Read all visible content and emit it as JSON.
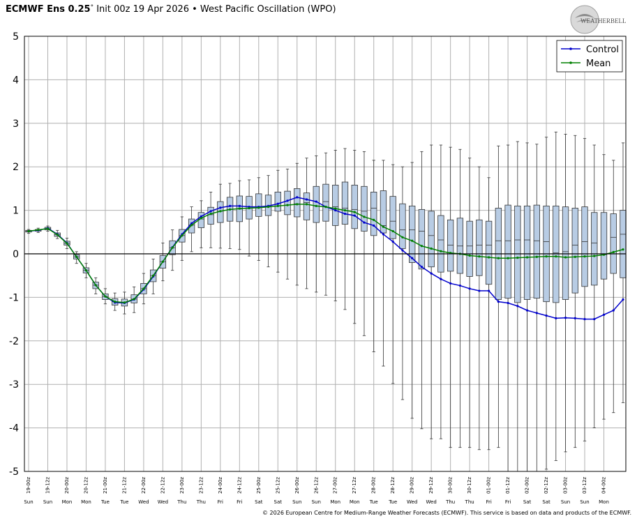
{
  "title": {
    "model": "ECMWF Ens 0.25",
    "degree": "°",
    "rest": " Init 00z 19 Apr 2026 • West Pacific Oscillation (WPO)"
  },
  "logo_text": "WeatherBELL",
  "footer": "© 2026 European Centre for Medium-Range Weather Forecasts (ECMWF). This service is based on data and products of the ECMWF.",
  "colors": {
    "control": "#0000cc",
    "mean": "#008000",
    "box_fill": "#b8cce4",
    "box_stroke": "#333333",
    "grid": "#b0b0b0",
    "zero_line": "#000000"
  },
  "chart_data": {
    "type": "box",
    "ylim": [
      -5,
      5
    ],
    "yticks": [
      "5",
      "4",
      "3",
      "2",
      "1",
      "0",
      "-1",
      "-2",
      "-3",
      "-4",
      "-5"
    ],
    "grid": true,
    "legend_position": "top-right",
    "legend": [
      "Control",
      "Mean"
    ],
    "x_labels": [
      "19-00z",
      "19-12z",
      "20-00z",
      "20-12z",
      "21-00z",
      "21-12z",
      "22-00z",
      "22-12z",
      "23-00z",
      "23-12z",
      "24-00z",
      "24-12z",
      "25-00z",
      "25-12z",
      "26-00z",
      "26-12z",
      "27-00z",
      "27-12z",
      "28-00z",
      "28-12z",
      "29-00z",
      "29-12z",
      "30-00z",
      "30-12z",
      "01-00z",
      "01-12z",
      "02-00z",
      "02-12z",
      "03-00z",
      "03-12z",
      "04-00z"
    ],
    "day_labels": [
      "Sun",
      "Sun",
      "Mon",
      "Mon",
      "Tue",
      "Tue",
      "Wed",
      "Wed",
      "Thu",
      "Thu",
      "Fri",
      "Fri",
      "Sat",
      "Sat",
      "Sun",
      "Sun",
      "Mon",
      "Mon",
      "Tue",
      "Tue",
      "Wed",
      "Wed",
      "Thu",
      "Thu",
      "Fri",
      "Fri",
      "Sat",
      "Sat",
      "Sun",
      "Sun",
      "Mon"
    ],
    "steps_per_label": 2,
    "series": [
      {
        "name": "Control",
        "values": [
          0.52,
          0.54,
          0.59,
          0.45,
          0.25,
          -0.07,
          -0.38,
          -0.72,
          -0.98,
          -1.12,
          -1.13,
          -1.05,
          -0.82,
          -0.52,
          -0.18,
          0.15,
          0.45,
          0.7,
          0.86,
          0.98,
          1.06,
          1.1,
          1.1,
          1.08,
          1.08,
          1.1,
          1.15,
          1.22,
          1.3,
          1.25,
          1.2,
          1.08,
          1.0,
          0.92,
          0.88,
          0.72,
          0.65,
          0.45,
          0.28,
          0.08,
          -0.1,
          -0.3,
          -0.45,
          -0.58,
          -0.68,
          -0.73,
          -0.8,
          -0.85,
          -0.85,
          -1.1,
          -1.13,
          -1.2,
          -1.3,
          -1.36,
          -1.42,
          -1.48,
          -1.47,
          -1.48,
          -1.5,
          -1.5,
          -1.4,
          -1.3,
          -1.05
        ]
      },
      {
        "name": "Mean",
        "values": [
          0.52,
          0.55,
          0.58,
          0.44,
          0.24,
          -0.07,
          -0.38,
          -0.72,
          -0.98,
          -1.1,
          -1.12,
          -1.04,
          -0.8,
          -0.5,
          -0.18,
          0.14,
          0.42,
          0.66,
          0.82,
          0.92,
          0.98,
          1.02,
          1.04,
          1.05,
          1.06,
          1.08,
          1.1,
          1.12,
          1.14,
          1.14,
          1.1,
          1.08,
          1.04,
          1.0,
          0.96,
          0.85,
          0.78,
          0.62,
          0.52,
          0.38,
          0.3,
          0.18,
          0.12,
          0.06,
          0.02,
          0.0,
          -0.04,
          -0.06,
          -0.08,
          -0.1,
          -0.1,
          -0.09,
          -0.08,
          -0.07,
          -0.06,
          -0.06,
          -0.08,
          -0.07,
          -0.06,
          -0.05,
          -0.02,
          0.04,
          0.1
        ]
      }
    ],
    "boxes": [
      {
        "min": 0.47,
        "q1": 0.5,
        "median": 0.52,
        "q3": 0.54,
        "max": 0.56
      },
      {
        "min": 0.49,
        "q1": 0.52,
        "median": 0.54,
        "q3": 0.56,
        "max": 0.59
      },
      {
        "min": 0.52,
        "q1": 0.55,
        "median": 0.58,
        "q3": 0.61,
        "max": 0.64
      },
      {
        "min": 0.35,
        "q1": 0.4,
        "median": 0.44,
        "q3": 0.48,
        "max": 0.54
      },
      {
        "min": 0.12,
        "q1": 0.2,
        "median": 0.24,
        "q3": 0.29,
        "max": 0.36
      },
      {
        "min": -0.22,
        "q1": -0.12,
        "median": -0.07,
        "q3": -0.02,
        "max": 0.05
      },
      {
        "min": -0.55,
        "q1": -0.44,
        "median": -0.38,
        "q3": -0.32,
        "max": -0.22
      },
      {
        "min": -0.92,
        "q1": -0.8,
        "median": -0.72,
        "q3": -0.65,
        "max": -0.55
      },
      {
        "min": -1.15,
        "q1": -1.05,
        "median": -0.98,
        "q3": -0.92,
        "max": -0.8
      },
      {
        "min": -1.3,
        "q1": -1.18,
        "median": -1.1,
        "q3": -1.03,
        "max": -0.9
      },
      {
        "min": -1.38,
        "q1": -1.2,
        "median": -1.12,
        "q3": -1.04,
        "max": -0.88
      },
      {
        "min": -1.35,
        "q1": -1.13,
        "median": -1.04,
        "q3": -0.94,
        "max": -0.76
      },
      {
        "min": -1.15,
        "q1": -0.92,
        "median": -0.8,
        "q3": -0.68,
        "max": -0.45
      },
      {
        "min": -0.92,
        "q1": -0.64,
        "median": -0.5,
        "q3": -0.37,
        "max": -0.12
      },
      {
        "min": -0.62,
        "q1": -0.33,
        "median": -0.18,
        "q3": -0.04,
        "max": 0.25
      },
      {
        "min": -0.38,
        "q1": -0.02,
        "median": 0.14,
        "q3": 0.3,
        "max": 0.55
      },
      {
        "min": -0.15,
        "q1": 0.27,
        "median": 0.42,
        "q3": 0.56,
        "max": 0.85
      },
      {
        "min": 0.05,
        "q1": 0.48,
        "median": 0.66,
        "q3": 0.8,
        "max": 1.08
      },
      {
        "min": 0.14,
        "q1": 0.6,
        "median": 0.8,
        "q3": 0.95,
        "max": 1.22
      },
      {
        "min": 0.14,
        "q1": 0.68,
        "median": 0.9,
        "q3": 1.07,
        "max": 1.42
      },
      {
        "min": 0.13,
        "q1": 0.72,
        "median": 0.98,
        "q3": 1.2,
        "max": 1.6
      },
      {
        "min": 0.12,
        "q1": 0.75,
        "median": 1.02,
        "q3": 1.3,
        "max": 1.62
      },
      {
        "min": 0.1,
        "q1": 0.74,
        "median": 1.03,
        "q3": 1.33,
        "max": 1.68
      },
      {
        "min": -0.05,
        "q1": 0.8,
        "median": 1.05,
        "q3": 1.32,
        "max": 1.7
      },
      {
        "min": -0.15,
        "q1": 0.86,
        "median": 1.07,
        "q3": 1.38,
        "max": 1.75
      },
      {
        "min": -0.3,
        "q1": 0.88,
        "median": 1.08,
        "q3": 1.35,
        "max": 1.8
      },
      {
        "min": -0.42,
        "q1": 0.98,
        "median": 1.1,
        "q3": 1.42,
        "max": 1.92
      },
      {
        "min": -0.58,
        "q1": 0.9,
        "median": 1.12,
        "q3": 1.44,
        "max": 1.95
      },
      {
        "min": -0.72,
        "q1": 0.85,
        "median": 1.15,
        "q3": 1.5,
        "max": 2.08
      },
      {
        "min": -0.8,
        "q1": 0.78,
        "median": 1.18,
        "q3": 1.4,
        "max": 2.2
      },
      {
        "min": -0.88,
        "q1": 0.72,
        "median": 1.1,
        "q3": 1.55,
        "max": 2.25
      },
      {
        "min": -0.95,
        "q1": 0.75,
        "median": 1.2,
        "q3": 1.6,
        "max": 2.32
      },
      {
        "min": -1.08,
        "q1": 0.65,
        "median": 1.08,
        "q3": 1.58,
        "max": 2.38
      },
      {
        "min": -1.28,
        "q1": 0.68,
        "median": 1.05,
        "q3": 1.65,
        "max": 2.42
      },
      {
        "min": -1.6,
        "q1": 0.58,
        "median": 1.02,
        "q3": 1.58,
        "max": 2.38
      },
      {
        "min": -1.88,
        "q1": 0.52,
        "median": 0.98,
        "q3": 1.55,
        "max": 2.35
      },
      {
        "min": -2.25,
        "q1": 0.42,
        "median": 1.05,
        "q3": 1.42,
        "max": 2.15
      },
      {
        "min": -2.58,
        "q1": 0.48,
        "median": 0.65,
        "q3": 1.45,
        "max": 2.15
      },
      {
        "min": -2.98,
        "q1": 0.35,
        "median": 0.75,
        "q3": 1.32,
        "max": 2.05
      },
      {
        "min": -3.35,
        "q1": 0.12,
        "median": 0.55,
        "q3": 1.15,
        "max": 2.0
      },
      {
        "min": -3.78,
        "q1": -0.2,
        "median": 0.55,
        "q3": 1.1,
        "max": 2.1
      },
      {
        "min": -4.02,
        "q1": -0.35,
        "median": 0.52,
        "q3": 1.02,
        "max": 2.35
      },
      {
        "min": -4.25,
        "q1": -0.3,
        "median": 0.42,
        "q3": 0.98,
        "max": 2.5
      },
      {
        "min": -4.25,
        "q1": -0.42,
        "median": 0.32,
        "q3": 0.88,
        "max": 2.5
      },
      {
        "min": -4.45,
        "q1": -0.4,
        "median": 0.2,
        "q3": 0.78,
        "max": 2.45
      },
      {
        "min": -4.45,
        "q1": -0.45,
        "median": 0.18,
        "q3": 0.82,
        "max": 2.4
      },
      {
        "min": -4.45,
        "q1": -0.52,
        "median": 0.18,
        "q3": 0.75,
        "max": 2.2
      },
      {
        "min": -4.5,
        "q1": -0.5,
        "median": 0.2,
        "q3": 0.78,
        "max": 2.0
      },
      {
        "min": -4.5,
        "q1": -0.7,
        "median": 0.2,
        "q3": 0.75,
        "max": 1.75
      },
      {
        "min": -4.45,
        "q1": -1.05,
        "median": 0.3,
        "q3": 1.05,
        "max": 2.48
      },
      {
        "min": -5.0,
        "q1": -1.02,
        "median": 0.3,
        "q3": 1.12,
        "max": 2.5
      },
      {
        "min": -5.0,
        "q1": -1.12,
        "median": 0.32,
        "q3": 1.1,
        "max": 2.58
      },
      {
        "min": -5.0,
        "q1": -1.05,
        "median": 0.32,
        "q3": 1.1,
        "max": 2.55
      },
      {
        "min": -5.0,
        "q1": -1.02,
        "median": 0.3,
        "q3": 1.12,
        "max": 2.52
      },
      {
        "min": -4.95,
        "q1": -1.1,
        "median": 0.28,
        "q3": 1.1,
        "max": 2.68
      },
      {
        "min": -4.75,
        "q1": -1.12,
        "median": 0.02,
        "q3": 1.1,
        "max": 2.8
      },
      {
        "min": -4.55,
        "q1": -1.05,
        "median": 0.05,
        "q3": 1.08,
        "max": 2.75
      },
      {
        "min": -4.45,
        "q1": -0.9,
        "median": 0.2,
        "q3": 1.05,
        "max": 2.72
      },
      {
        "min": -4.3,
        "q1": -0.75,
        "median": 0.28,
        "q3": 1.08,
        "max": 2.65
      },
      {
        "min": -4.0,
        "q1": -0.72,
        "median": 0.25,
        "q3": 0.95,
        "max": 2.5
      },
      {
        "min": -3.8,
        "q1": -0.58,
        "median": -0.02,
        "q3": 0.95,
        "max": 2.28
      },
      {
        "min": -3.65,
        "q1": -0.45,
        "median": 0.38,
        "q3": 0.92,
        "max": 2.15
      },
      {
        "min": -3.42,
        "q1": -0.55,
        "median": 0.45,
        "q3": 1.0,
        "max": 2.55
      }
    ]
  }
}
